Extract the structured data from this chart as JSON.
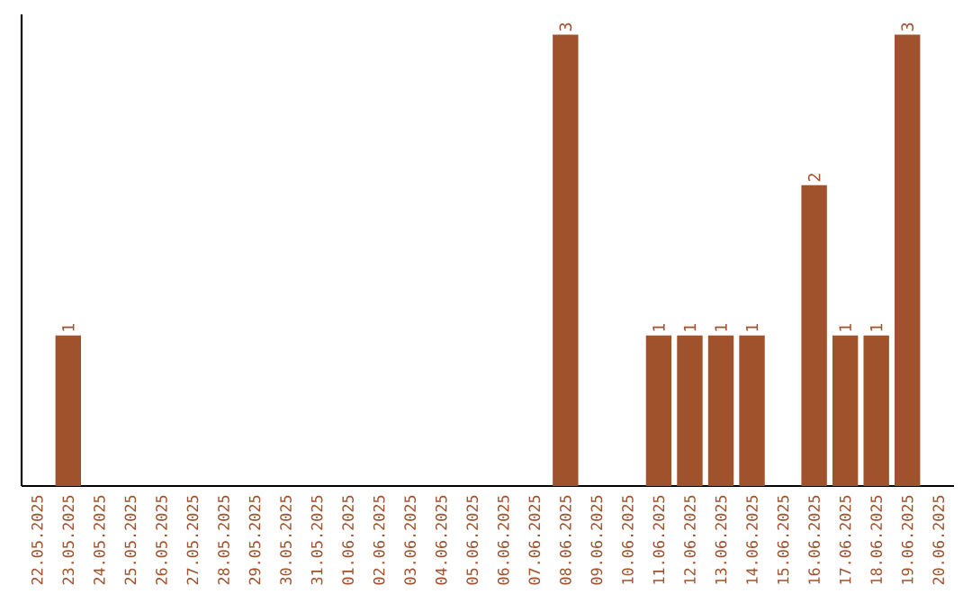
{
  "chart_data": {
    "type": "bar",
    "categories": [
      "22.05.2025",
      "23.05.2025",
      "24.05.2025",
      "25.05.2025",
      "26.05.2025",
      "27.05.2025",
      "28.05.2025",
      "29.05.2025",
      "30.05.2025",
      "31.05.2025",
      "01.06.2025",
      "02.06.2025",
      "03.06.2025",
      "04.06.2025",
      "05.06.2025",
      "06.06.2025",
      "07.06.2025",
      "08.06.2025",
      "09.06.2025",
      "10.06.2025",
      "11.06.2025",
      "12.06.2025",
      "13.06.2025",
      "14.06.2025",
      "15.06.2025",
      "16.06.2025",
      "17.06.2025",
      "18.06.2025",
      "19.06.2025",
      "20.06.2025"
    ],
    "values": [
      0,
      1,
      0,
      0,
      0,
      0,
      0,
      0,
      0,
      0,
      0,
      0,
      0,
      0,
      0,
      0,
      0,
      3,
      0,
      0,
      1,
      1,
      1,
      1,
      0,
      2,
      1,
      1,
      3,
      0
    ],
    "value_labels": [
      null,
      "1",
      null,
      null,
      null,
      null,
      null,
      null,
      null,
      null,
      null,
      null,
      null,
      null,
      null,
      null,
      null,
      "3",
      null,
      null,
      "1",
      "1",
      "1",
      "1",
      null,
      "2",
      "1",
      "1",
      "3",
      null
    ],
    "color": "#a0522d"
  }
}
